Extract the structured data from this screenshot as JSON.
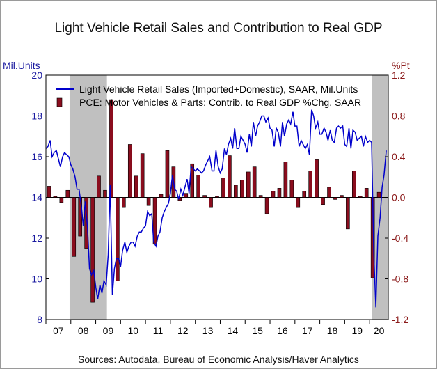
{
  "title": "Light Vehicle Retail Sales and Contribution to Real GDP",
  "left_axis_label": "Mil.Units",
  "right_axis_label": "%Pt",
  "source": "Sources:  Autodata, Bureau of Economic Analysis/Haver Analytics",
  "colors": {
    "line": "#0000cc",
    "bars": "#8b0d1e",
    "recession": "#c0c0c0",
    "left_axis": "#1a1aa0",
    "right_axis": "#8b1a1a"
  },
  "chart_data": {
    "type": "bar+line",
    "title": "Light Vehicle Retail Sales and Contribution to Real GDP",
    "x_range": [
      2007.0,
      2020.75
    ],
    "x_tick_labels": [
      "07",
      "08",
      "09",
      "10",
      "11",
      "12",
      "13",
      "14",
      "15",
      "16",
      "17",
      "18",
      "19",
      "20"
    ],
    "y_left": {
      "label": "Mil.Units",
      "ylim": [
        8,
        20
      ],
      "ticks": [
        8,
        10,
        12,
        14,
        16,
        18,
        20
      ]
    },
    "y_right": {
      "label": "%Pt",
      "ylim": [
        -1.2,
        1.2
      ],
      "ticks": [
        "-1.2",
        "-0.8",
        "-0.4",
        "0.0",
        "0.4",
        "0.8",
        "1.2"
      ]
    },
    "recessions": [
      [
        2007.95,
        2009.45
      ],
      [
        2020.1,
        2020.75
      ]
    ],
    "legend": {
      "position": "top",
      "entries": [
        "Light Vehicle Retail Sales (Imported+Domestic), SAAR, Mil.Units",
        "PCE: Motor Vehicles & Parts: Contrib. to Real GDP %Chg, SAAR"
      ]
    },
    "series": [
      {
        "name": "Light Vehicle Retail Sales (Imported+Domestic), SAAR, Mil.Units",
        "axis": "left",
        "type": "line",
        "points": [
          [
            2007.0,
            16.4
          ],
          [
            2007.08,
            16.5
          ],
          [
            2007.17,
            16.8
          ],
          [
            2007.25,
            16.0
          ],
          [
            2007.33,
            16.2
          ],
          [
            2007.42,
            16.3
          ],
          [
            2007.5,
            15.9
          ],
          [
            2007.58,
            15.5
          ],
          [
            2007.67,
            16.0
          ],
          [
            2007.75,
            16.2
          ],
          [
            2007.83,
            16.1
          ],
          [
            2007.92,
            16.0
          ],
          [
            2008.0,
            15.6
          ],
          [
            2008.08,
            15.4
          ],
          [
            2008.17,
            15.0
          ],
          [
            2008.25,
            14.4
          ],
          [
            2008.33,
            14.4
          ],
          [
            2008.42,
            13.6
          ],
          [
            2008.5,
            12.6
          ],
          [
            2008.58,
            13.8
          ],
          [
            2008.67,
            12.5
          ],
          [
            2008.75,
            10.5
          ],
          [
            2008.83,
            10.2
          ],
          [
            2008.92,
            10.4
          ],
          [
            2009.0,
            9.6
          ],
          [
            2009.08,
            9.0
          ],
          [
            2009.17,
            9.7
          ],
          [
            2009.25,
            9.3
          ],
          [
            2009.33,
            9.9
          ],
          [
            2009.42,
            9.7
          ],
          [
            2009.5,
            11.2
          ],
          [
            2009.58,
            14.6
          ],
          [
            2009.67,
            9.2
          ],
          [
            2009.75,
            10.5
          ],
          [
            2009.83,
            11.0
          ],
          [
            2009.92,
            11.0
          ],
          [
            2010.0,
            10.6
          ],
          [
            2010.08,
            11.4
          ],
          [
            2010.17,
            11.8
          ],
          [
            2010.25,
            11.3
          ],
          [
            2010.33,
            11.6
          ],
          [
            2010.42,
            11.8
          ],
          [
            2010.5,
            11.8
          ],
          [
            2010.58,
            11.6
          ],
          [
            2010.67,
            12.1
          ],
          [
            2010.75,
            12.3
          ],
          [
            2010.83,
            12.3
          ],
          [
            2010.92,
            12.5
          ],
          [
            2011.0,
            12.6
          ],
          [
            2011.08,
            13.3
          ],
          [
            2011.17,
            13.1
          ],
          [
            2011.25,
            13.2
          ],
          [
            2011.33,
            11.8
          ],
          [
            2011.42,
            11.6
          ],
          [
            2011.5,
            12.1
          ],
          [
            2011.58,
            12.3
          ],
          [
            2011.67,
            13.0
          ],
          [
            2011.75,
            13.3
          ],
          [
            2011.83,
            13.5
          ],
          [
            2011.92,
            13.7
          ],
          [
            2012.0,
            14.2
          ],
          [
            2012.08,
            15.1
          ],
          [
            2012.17,
            14.4
          ],
          [
            2012.25,
            14.3
          ],
          [
            2012.33,
            13.9
          ],
          [
            2012.42,
            14.4
          ],
          [
            2012.5,
            14.1
          ],
          [
            2012.58,
            14.5
          ],
          [
            2012.67,
            14.9
          ],
          [
            2012.75,
            14.2
          ],
          [
            2012.83,
            15.5
          ],
          [
            2012.92,
            15.4
          ],
          [
            2013.0,
            15.3
          ],
          [
            2013.08,
            15.4
          ],
          [
            2013.17,
            15.3
          ],
          [
            2013.25,
            15.2
          ],
          [
            2013.33,
            15.3
          ],
          [
            2013.42,
            15.6
          ],
          [
            2013.5,
            15.8
          ],
          [
            2013.58,
            16.0
          ],
          [
            2013.67,
            15.3
          ],
          [
            2013.75,
            15.3
          ],
          [
            2013.83,
            16.3
          ],
          [
            2013.92,
            15.5
          ],
          [
            2014.0,
            15.2
          ],
          [
            2014.08,
            15.4
          ],
          [
            2014.17,
            16.4
          ],
          [
            2014.25,
            16.1
          ],
          [
            2014.33,
            16.6
          ],
          [
            2014.42,
            16.9
          ],
          [
            2014.5,
            16.4
          ],
          [
            2014.58,
            17.4
          ],
          [
            2014.67,
            16.4
          ],
          [
            2014.75,
            16.4
          ],
          [
            2014.83,
            17.0
          ],
          [
            2014.92,
            16.8
          ],
          [
            2015.0,
            16.6
          ],
          [
            2015.08,
            16.2
          ],
          [
            2015.17,
            17.1
          ],
          [
            2015.25,
            16.5
          ],
          [
            2015.33,
            17.7
          ],
          [
            2015.42,
            17.0
          ],
          [
            2015.5,
            17.5
          ],
          [
            2015.58,
            17.7
          ],
          [
            2015.67,
            18.0
          ],
          [
            2015.75,
            18.0
          ],
          [
            2015.83,
            17.7
          ],
          [
            2015.92,
            17.9
          ],
          [
            2016.0,
            17.4
          ],
          [
            2016.08,
            17.3
          ],
          [
            2016.17,
            16.5
          ],
          [
            2016.25,
            17.4
          ],
          [
            2016.33,
            17.2
          ],
          [
            2016.42,
            16.5
          ],
          [
            2016.5,
            17.7
          ],
          [
            2016.58,
            17.0
          ],
          [
            2016.67,
            17.6
          ],
          [
            2016.75,
            17.8
          ],
          [
            2016.83,
            17.6
          ],
          [
            2016.92,
            18.2
          ],
          [
            2017.0,
            17.5
          ],
          [
            2017.08,
            17.5
          ],
          [
            2017.17,
            16.5
          ],
          [
            2017.25,
            16.8
          ],
          [
            2017.33,
            16.6
          ],
          [
            2017.42,
            16.4
          ],
          [
            2017.5,
            16.6
          ],
          [
            2017.58,
            16.1
          ],
          [
            2017.67,
            18.3
          ],
          [
            2017.75,
            18.0
          ],
          [
            2017.83,
            17.4
          ],
          [
            2017.92,
            17.7
          ],
          [
            2018.0,
            17.1
          ],
          [
            2018.08,
            17.1
          ],
          [
            2018.17,
            17.4
          ],
          [
            2018.25,
            17.2
          ],
          [
            2018.33,
            16.8
          ],
          [
            2018.42,
            17.3
          ],
          [
            2018.5,
            16.8
          ],
          [
            2018.58,
            16.7
          ],
          [
            2018.67,
            17.4
          ],
          [
            2018.75,
            17.5
          ],
          [
            2018.83,
            17.4
          ],
          [
            2018.92,
            17.5
          ],
          [
            2019.0,
            16.6
          ],
          [
            2019.08,
            16.5
          ],
          [
            2019.17,
            17.4
          ],
          [
            2019.25,
            16.4
          ],
          [
            2019.33,
            17.3
          ],
          [
            2019.42,
            17.2
          ],
          [
            2019.5,
            16.8
          ],
          [
            2019.58,
            16.9
          ],
          [
            2019.67,
            17.0
          ],
          [
            2019.75,
            16.5
          ],
          [
            2019.83,
            17.0
          ],
          [
            2019.92,
            16.7
          ],
          [
            2020.0,
            16.8
          ],
          [
            2020.08,
            16.7
          ],
          [
            2020.17,
            11.2
          ],
          [
            2020.25,
            8.6
          ],
          [
            2020.33,
            12.1
          ],
          [
            2020.42,
            13.0
          ],
          [
            2020.5,
            14.5
          ],
          [
            2020.58,
            15.1
          ],
          [
            2020.67,
            16.3
          ]
        ]
      },
      {
        "name": "PCE: Motor Vehicles & Parts: Contrib. to Real GDP %Chg, SAAR",
        "axis": "right",
        "type": "bar",
        "points": [
          [
            2007.125,
            0.11
          ],
          [
            2007.375,
            0.01
          ],
          [
            2007.625,
            -0.05
          ],
          [
            2007.875,
            0.07
          ],
          [
            2008.125,
            -0.58
          ],
          [
            2008.375,
            -0.38
          ],
          [
            2008.625,
            -0.5
          ],
          [
            2008.875,
            -1.03
          ],
          [
            2009.125,
            0.21
          ],
          [
            2009.375,
            0.07
          ],
          [
            2009.625,
            0.96
          ],
          [
            2009.875,
            -0.82
          ],
          [
            2010.125,
            -0.1
          ],
          [
            2010.375,
            0.52
          ],
          [
            2010.625,
            0.21
          ],
          [
            2010.875,
            0.43
          ],
          [
            2011.125,
            -0.08
          ],
          [
            2011.375,
            -0.46
          ],
          [
            2011.625,
            0.03
          ],
          [
            2011.875,
            0.46
          ],
          [
            2012.125,
            0.3
          ],
          [
            2012.375,
            -0.03
          ],
          [
            2012.625,
            0.04
          ],
          [
            2012.875,
            0.33
          ],
          [
            2013.125,
            0.22
          ],
          [
            2013.375,
            0.02
          ],
          [
            2013.625,
            -0.1
          ],
          [
            2013.875,
            0.01
          ],
          [
            2014.125,
            0.19
          ],
          [
            2014.375,
            0.41
          ],
          [
            2014.625,
            0.12
          ],
          [
            2014.875,
            0.17
          ],
          [
            2015.125,
            0.25
          ],
          [
            2015.375,
            0.3
          ],
          [
            2015.625,
            0.02
          ],
          [
            2015.875,
            -0.16
          ],
          [
            2016.125,
            0.06
          ],
          [
            2016.375,
            0.09
          ],
          [
            2016.625,
            0.35
          ],
          [
            2016.875,
            0.17
          ],
          [
            2017.125,
            -0.1
          ],
          [
            2017.375,
            0.06
          ],
          [
            2017.625,
            0.26
          ],
          [
            2017.875,
            0.37
          ],
          [
            2018.125,
            -0.07
          ],
          [
            2018.375,
            0.1
          ],
          [
            2018.625,
            -0.02
          ],
          [
            2018.875,
            0.02
          ],
          [
            2019.125,
            -0.31
          ],
          [
            2019.375,
            0.26
          ],
          [
            2019.625,
            0.01
          ],
          [
            2019.875,
            0.09
          ],
          [
            2020.125,
            -0.79
          ],
          [
            2020.375,
            0.05
          ]
        ]
      }
    ]
  }
}
